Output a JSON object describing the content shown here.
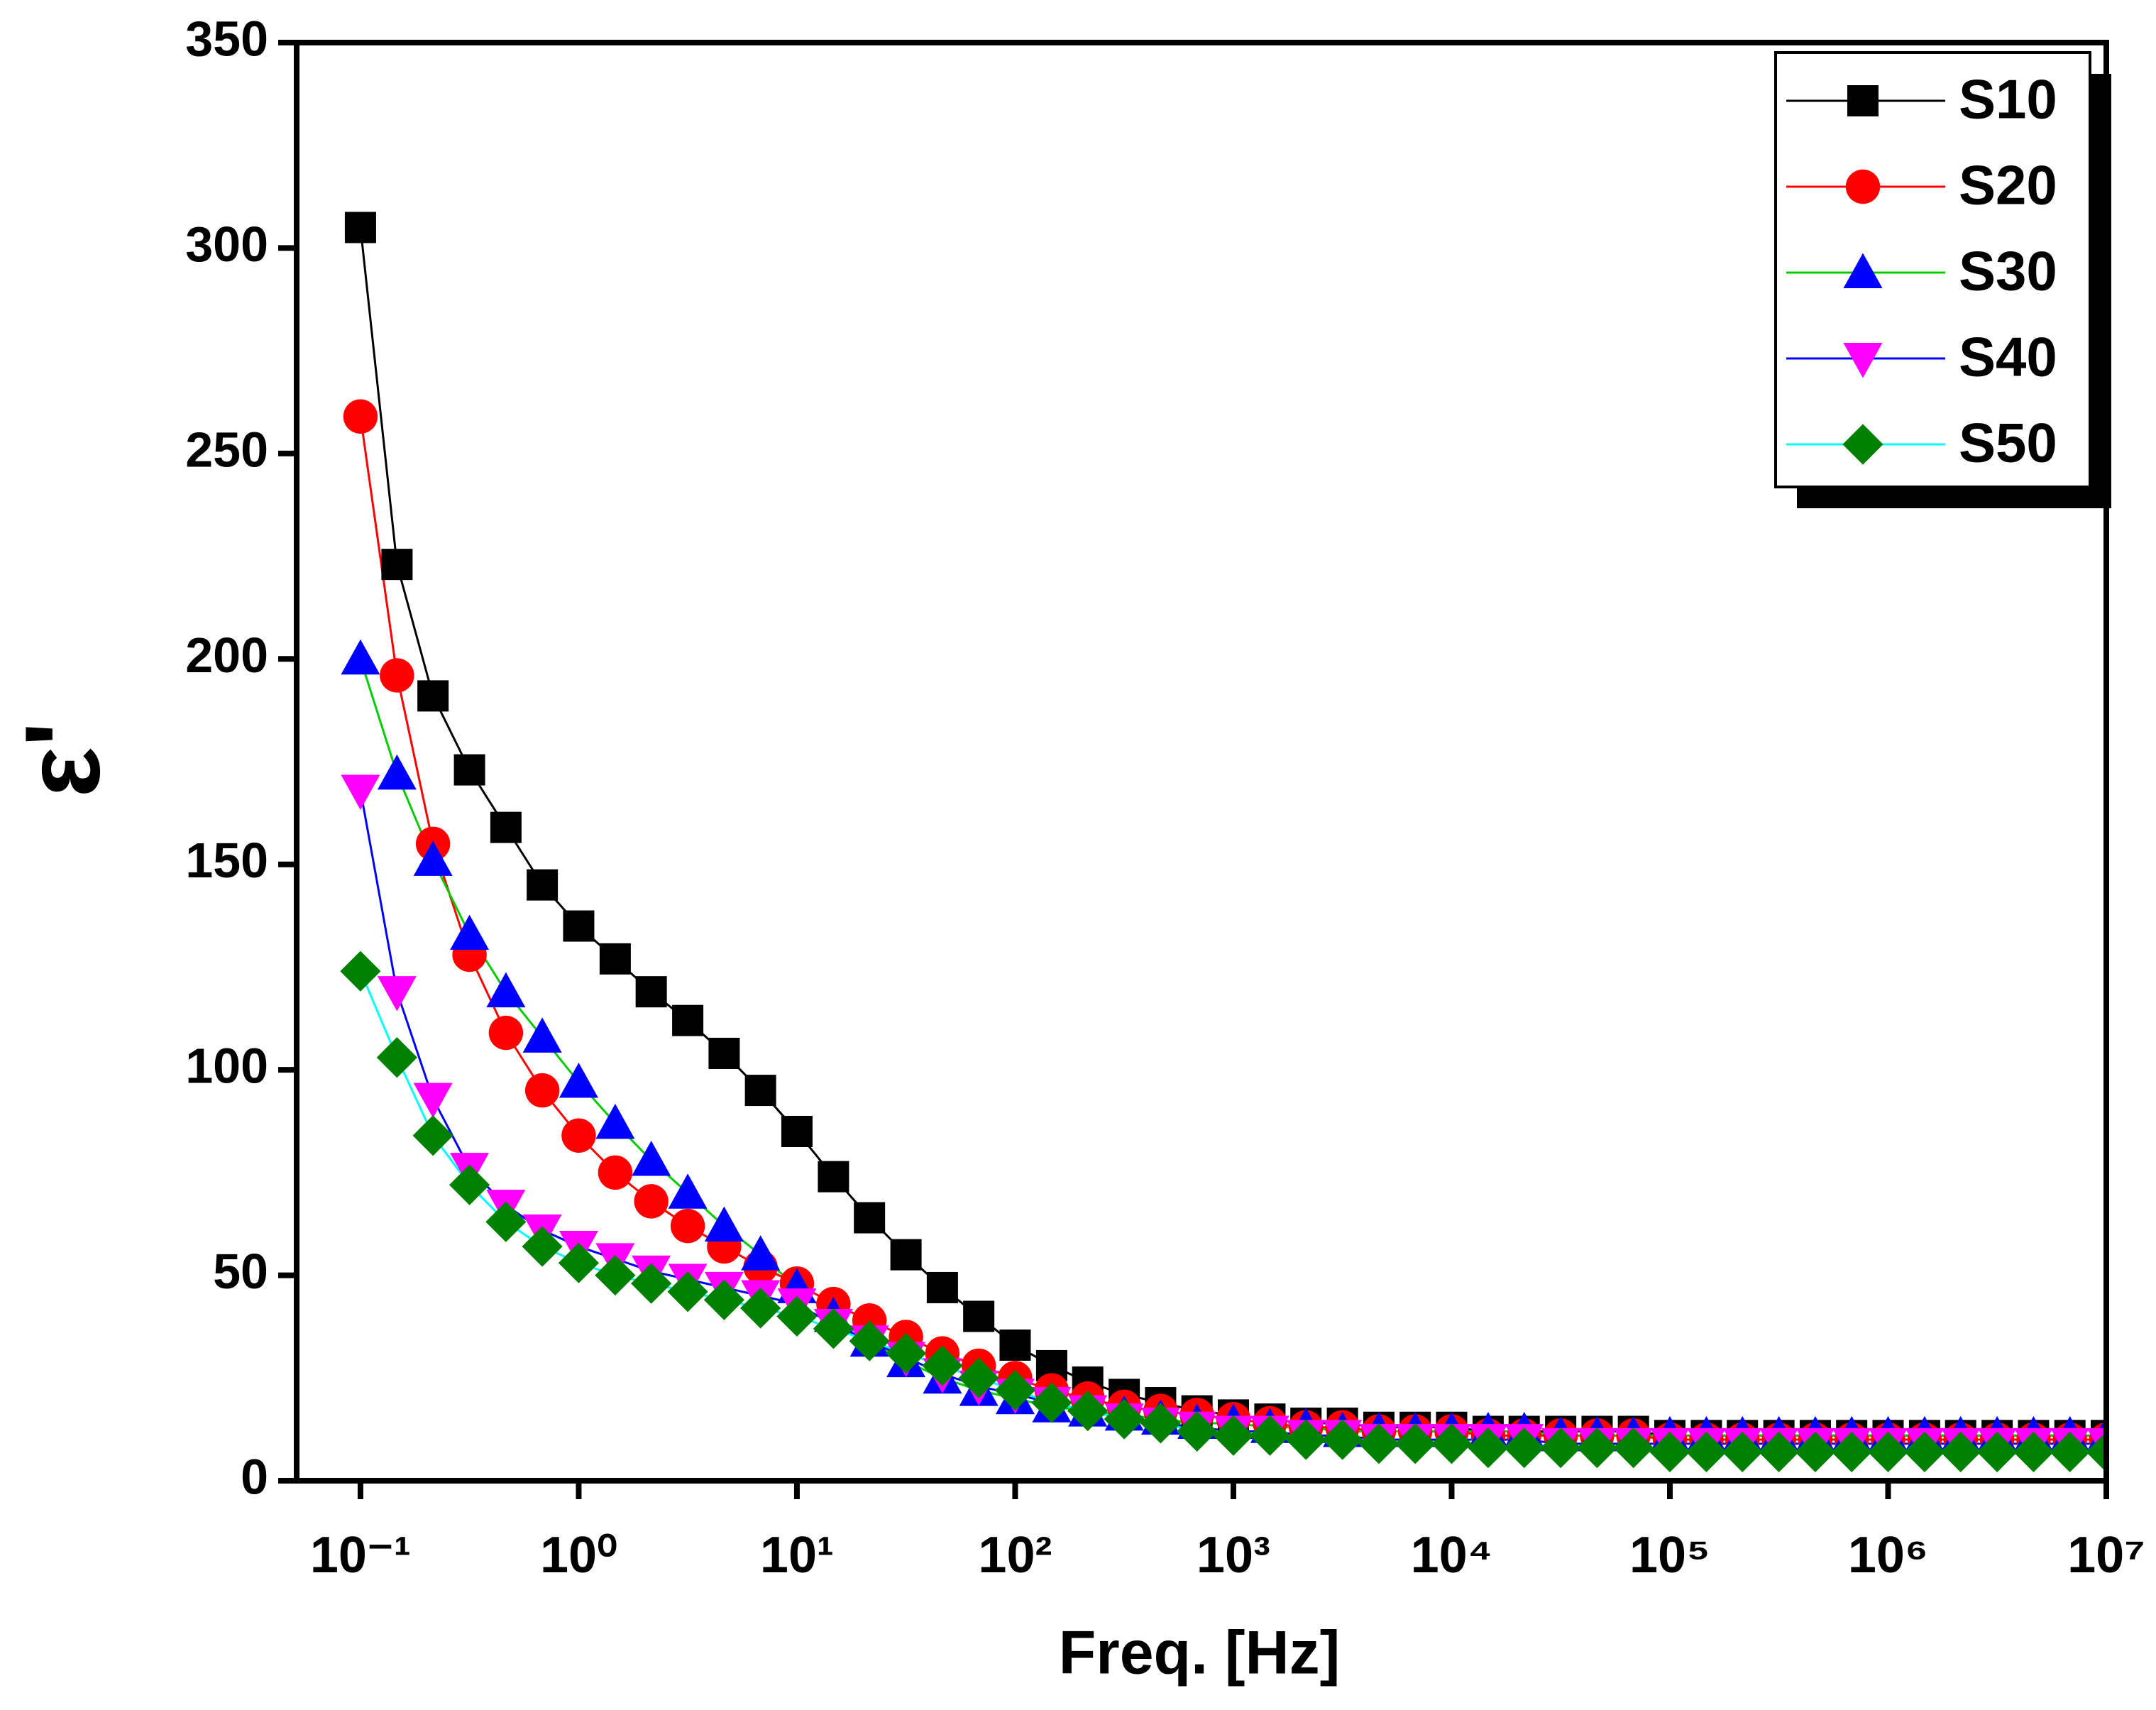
{
  "chart_data": {
    "type": "line",
    "x_label": "Freq. [Hz]",
    "y_label": "ε'",
    "x": [
      0.1,
      0.147,
      0.215,
      0.316,
      0.464,
      0.681,
      1,
      1.47,
      2.15,
      3.16,
      4.64,
      6.81,
      10,
      14.7,
      21.5,
      31.6,
      46.4,
      68.1,
      100,
      147,
      215,
      316,
      464,
      681,
      1000,
      1470,
      2150,
      3160,
      4640,
      6810,
      10000,
      14700,
      21500,
      31600,
      46400,
      68100,
      100000,
      147000,
      215000,
      316000,
      464000,
      681000,
      1000000,
      1470000,
      2150000,
      3160000,
      4640000,
      6810000,
      10000000
    ],
    "series": [
      {
        "name": "S10",
        "color": "#000000",
        "line_color": "#000000",
        "marker": "square",
        "values": [
          305,
          223,
          191,
          173,
          159,
          145,
          135,
          127,
          119,
          112,
          104,
          95,
          85,
          74,
          64,
          55,
          47,
          40,
          33,
          28,
          24,
          21,
          19,
          17,
          16,
          15,
          14,
          14,
          13,
          13,
          13,
          12,
          12,
          12,
          12,
          12,
          11,
          11,
          11,
          11,
          11,
          11,
          11,
          11,
          11,
          11,
          11,
          11,
          11
        ]
      },
      {
        "name": "S20",
        "color": "#ff0000",
        "line_color": "#ff0000",
        "marker": "circle",
        "values": [
          259,
          196,
          155,
          128,
          109,
          95,
          84,
          75,
          68,
          62,
          57,
          52,
          48,
          43,
          39,
          35,
          31,
          28,
          25,
          22,
          20,
          18,
          17,
          16,
          15,
          14,
          13,
          13,
          12,
          12,
          12,
          11,
          11,
          11,
          11,
          11,
          10,
          10,
          10,
          10,
          10,
          10,
          10,
          10,
          10,
          10,
          10,
          10,
          10
        ]
      },
      {
        "name": "S30",
        "color": "#0000ff",
        "line_color": "#00cc00",
        "marker": "triangle",
        "values": [
          200,
          172,
          151,
          133,
          119,
          108,
          97,
          87,
          78,
          70,
          62,
          55,
          47,
          40,
          34,
          29,
          25,
          22,
          20,
          18,
          17,
          16,
          15,
          14,
          14,
          13,
          13,
          12,
          12,
          12,
          12,
          12,
          12,
          11,
          11,
          11,
          11,
          11,
          11,
          11,
          11,
          11,
          11,
          11,
          11,
          11,
          11,
          11,
          11
        ]
      },
      {
        "name": "S40",
        "color": "#ff00ff",
        "line_color": "#0000ff",
        "marker": "triangle-down",
        "values": [
          168,
          119,
          93,
          76,
          67,
          61,
          57,
          54,
          51,
          49,
          47,
          45,
          43,
          38,
          34,
          30,
          26,
          23,
          21,
          19,
          17,
          15,
          14,
          13,
          12,
          12,
          11,
          11,
          10,
          10,
          10,
          10,
          10,
          9,
          9,
          9,
          9,
          9,
          9,
          9,
          9,
          9,
          9,
          9,
          9,
          9,
          9,
          9,
          9
        ]
      },
      {
        "name": "S50",
        "color": "#008000",
        "line_color": "#00ffff",
        "marker": "diamond",
        "values": [
          124,
          103,
          84,
          72,
          63,
          57,
          53,
          50,
          48,
          46,
          44,
          42,
          40,
          37,
          34,
          31,
          28,
          25,
          22,
          19,
          17,
          15,
          14,
          12,
          11,
          11,
          10,
          10,
          9,
          9,
          9,
          8,
          8,
          8,
          8,
          8,
          7,
          7,
          7,
          7,
          7,
          7,
          7,
          7,
          7,
          7,
          7,
          7,
          7
        ]
      }
    ],
    "xscale": "log",
    "xlim": [
      0.051,
      10000000
    ],
    "xticks": [
      {
        "value": 0.1,
        "label": "10⁻¹"
      },
      {
        "value": 1,
        "label": "10⁰"
      },
      {
        "value": 10,
        "label": "10¹"
      },
      {
        "value": 100,
        "label": "10²"
      },
      {
        "value": 1000,
        "label": "10³"
      },
      {
        "value": 10000,
        "label": "10⁴"
      },
      {
        "value": 100000,
        "label": "10⁵"
      },
      {
        "value": 1000000,
        "label": "10⁶"
      },
      {
        "value": 10000000,
        "label": "10⁷"
      }
    ],
    "ylim": [
      0,
      350
    ],
    "yticks": [
      0,
      50,
      100,
      150,
      200,
      250,
      300,
      350
    ],
    "grid": false,
    "legend": "upper right"
  }
}
